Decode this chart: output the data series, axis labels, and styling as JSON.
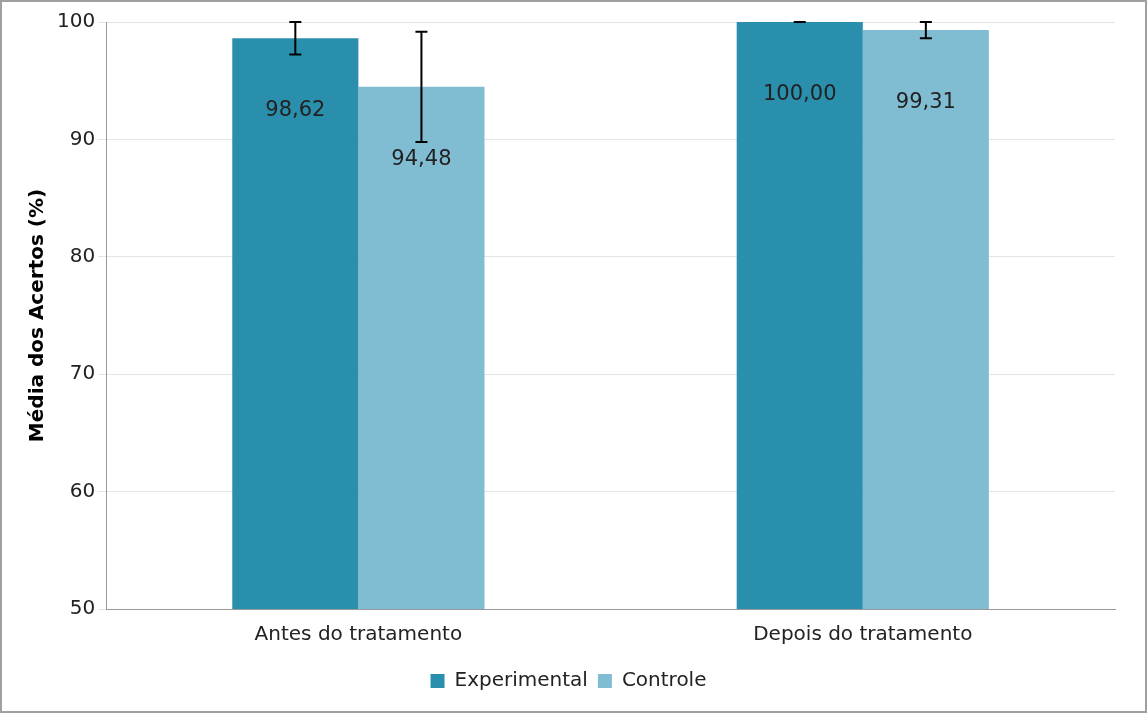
{
  "chart_data": {
    "type": "bar",
    "ylabel": "Média dos Acertos (%)",
    "categories": [
      "Antes do tratamento",
      "Depois do tratamento"
    ],
    "series": [
      {
        "name": "Experimental",
        "color": "#2a8fad",
        "values": [
          98.62,
          100.0
        ],
        "value_labels": [
          "98,62",
          "100,00"
        ],
        "errors": [
          1.38,
          0
        ]
      },
      {
        "name": "Controle",
        "color": "#80bdd3",
        "values": [
          94.48,
          99.31
        ],
        "value_labels": [
          "94,48",
          "99,31"
        ],
        "errors": [
          4.7,
          0.69
        ]
      }
    ],
    "ylim": [
      50,
      100
    ],
    "yticks": [
      50,
      60,
      70,
      80,
      90,
      100
    ],
    "grid": "y",
    "legend": "bottom"
  }
}
